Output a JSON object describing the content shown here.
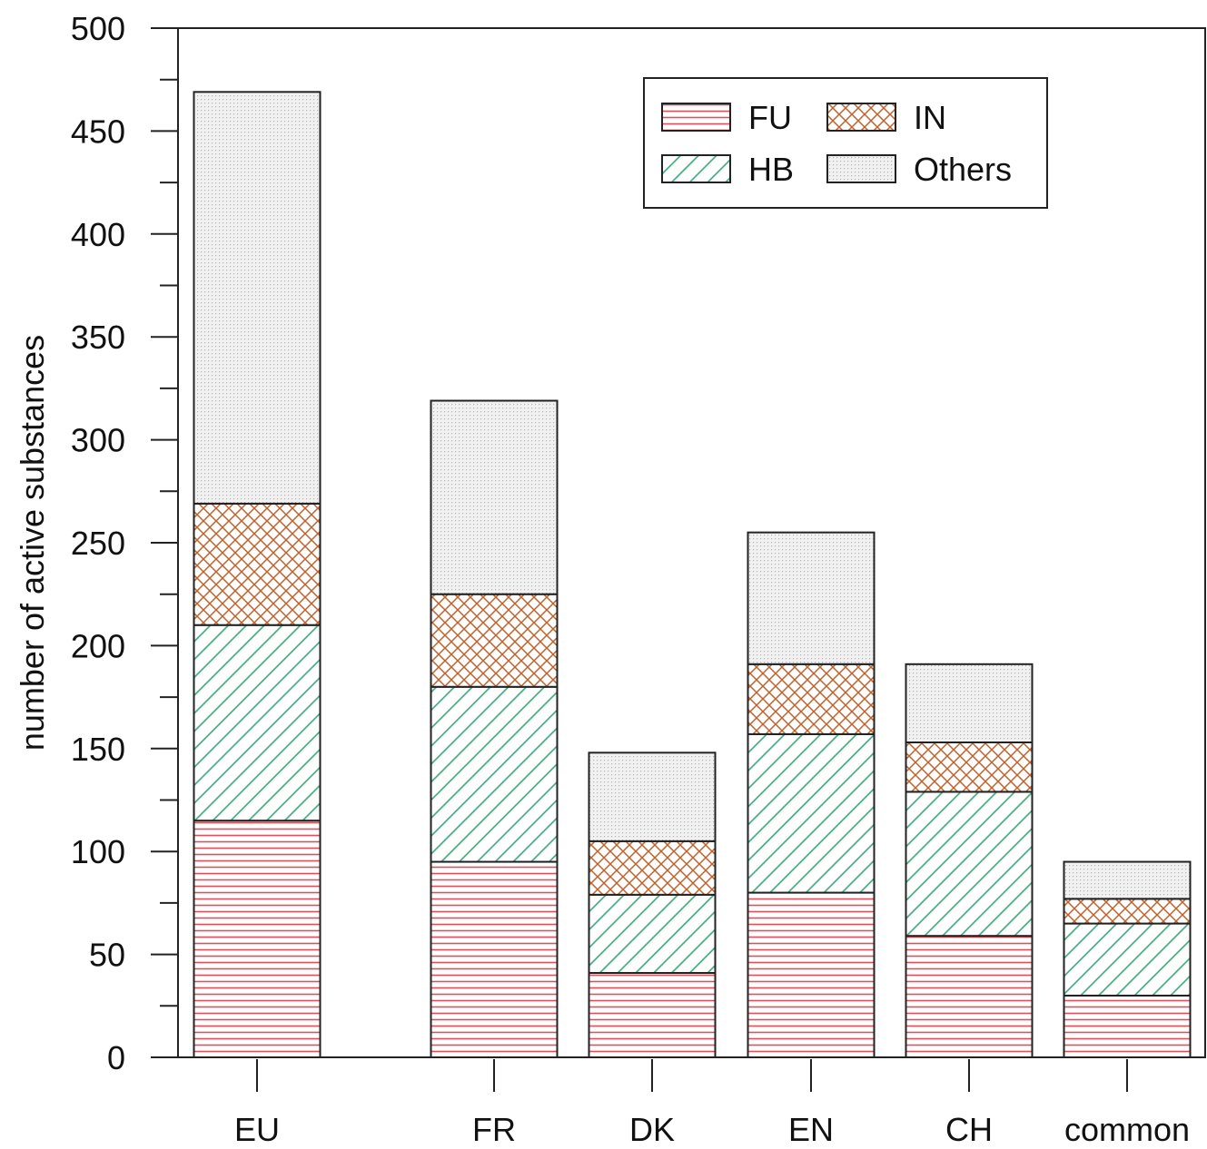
{
  "chart_data": {
    "type": "bar",
    "stacked": true,
    "categories": [
      "EU",
      "FR",
      "DK",
      "EN",
      "CH",
      "common"
    ],
    "series": [
      {
        "name": "FU",
        "values": [
          115,
          95,
          41,
          80,
          59,
          30
        ],
        "color": "#e0505a",
        "pattern": "horizontal-lines"
      },
      {
        "name": "HB",
        "values": [
          95,
          85,
          38,
          77,
          70,
          35
        ],
        "color": "#3aa57a",
        "pattern": "diagonal-lines"
      },
      {
        "name": "IN",
        "values": [
          59,
          45,
          26,
          34,
          24,
          12
        ],
        "color": "#c0602a",
        "pattern": "crosshatch"
      },
      {
        "name": "Others",
        "values": [
          200,
          94,
          43,
          64,
          38,
          18
        ],
        "color": "#9a9a9a",
        "pattern": "dots"
      }
    ],
    "xlabel": "",
    "ylabel": "number of active substances",
    "ylim": [
      0,
      500
    ],
    "yticks": [
      0,
      50,
      100,
      150,
      200,
      250,
      300,
      350,
      400,
      450,
      500
    ],
    "grid": false,
    "legend_position": "top-right"
  }
}
